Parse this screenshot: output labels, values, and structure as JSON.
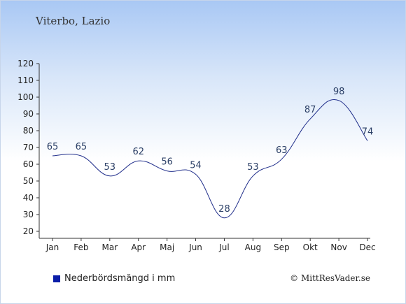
{
  "title": "Viterbo, Lazio",
  "legend_label": "Nederbördsmängd i mm",
  "credit": "© MittResVader.se",
  "colors": {
    "line": "#1f2d8a",
    "label": "#2b3f66",
    "axis": "#333333",
    "swatch": "#0b1ea8"
  },
  "chart_data": {
    "type": "line",
    "categories": [
      "Jan",
      "Feb",
      "Mar",
      "Apr",
      "Maj",
      "Jun",
      "Jul",
      "Aug",
      "Sep",
      "Okt",
      "Nov",
      "Dec"
    ],
    "series": [
      {
        "name": "Nederbördsmängd i mm",
        "values": [
          65,
          65,
          53,
          62,
          56,
          54,
          28,
          53,
          63,
          87,
          98,
          74
        ]
      }
    ],
    "ylim": [
      20,
      120
    ],
    "yticks": [
      20,
      30,
      40,
      50,
      60,
      70,
      80,
      90,
      100,
      110,
      120
    ],
    "grid": false,
    "data_labels": true
  }
}
